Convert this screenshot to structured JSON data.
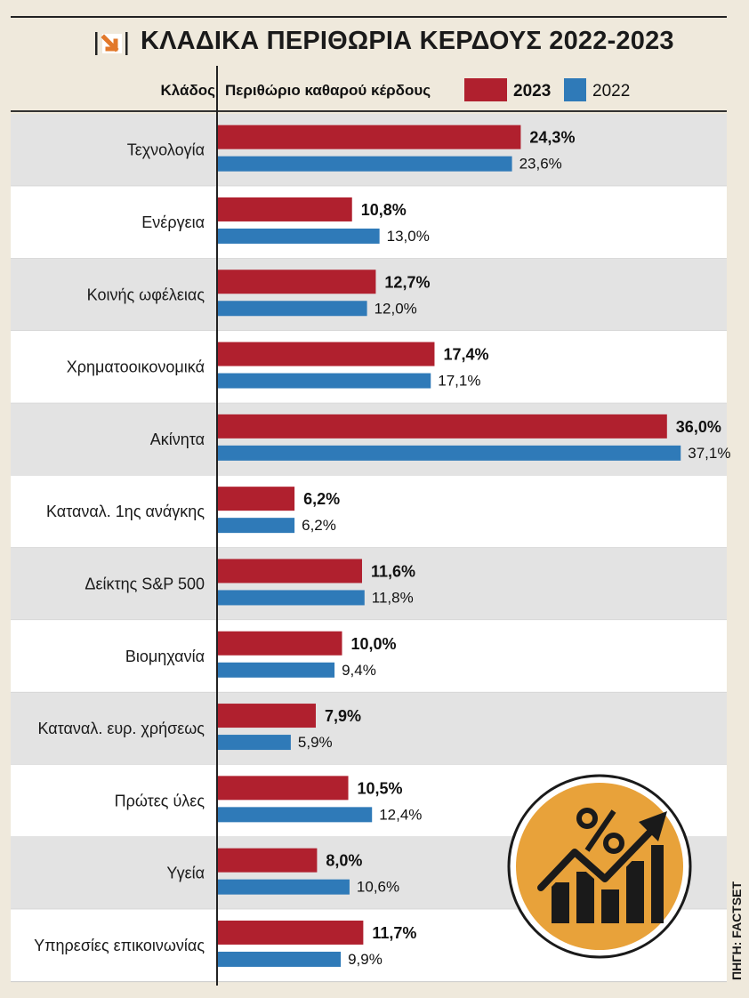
{
  "chart_data": {
    "type": "bar",
    "orientation": "horizontal",
    "title": "ΚΛΑΔΙΚΑ ΠΕΡΙΘΩΡΙΑ ΚΕΡΔΟΥΣ 2022-2023",
    "category_header": "Κλάδος",
    "value_header": "Περιθώριο καθαρού κέρδους",
    "source": "ΠΗΓΗ: FACTSET",
    "categories": [
      "Τεχνολογία",
      "Ενέργεια",
      "Κοινής ωφέλειας",
      "Χρηματοοικονομικά",
      "Ακίνητα",
      "Καταναλ. 1ης ανάγκης",
      "Δείκτης S&P 500",
      "Βιομηχανία",
      "Καταναλ. ευρ. χρήσεως",
      "Πρώτες ύλες",
      "Υγεία",
      "Υπηρεσίες επικοινωνίας"
    ],
    "series": [
      {
        "name": "2023",
        "color": "#b0202e",
        "values": [
          24.3,
          10.8,
          12.7,
          17.4,
          36.0,
          6.2,
          11.6,
          10.0,
          7.9,
          10.5,
          8.0,
          11.7
        ],
        "labels": [
          "24,3%",
          "10,8%",
          "12,7%",
          "17,4%",
          "36,0%",
          "6,2%",
          "11,6%",
          "10,0%",
          "7,9%",
          "10,5%",
          "8,0%",
          "11,7%"
        ]
      },
      {
        "name": "2022",
        "color": "#2f7ab8",
        "values": [
          23.6,
          13.0,
          12.0,
          17.1,
          37.1,
          6.2,
          11.8,
          9.4,
          5.9,
          12.4,
          10.6,
          9.9
        ],
        "labels": [
          "23,6%",
          "13,0%",
          "12,0%",
          "17,1%",
          "37,1%",
          "6,2%",
          "11,8%",
          "9,4%",
          "5,9%",
          "12,4%",
          "10,6%",
          "9,9%"
        ]
      }
    ],
    "unit": "%",
    "row_colors": [
      "#e3e3e3",
      "#ffffff"
    ],
    "badge_icon": "percent-growth-chart-icon",
    "badge_color": "#e8a23a"
  }
}
